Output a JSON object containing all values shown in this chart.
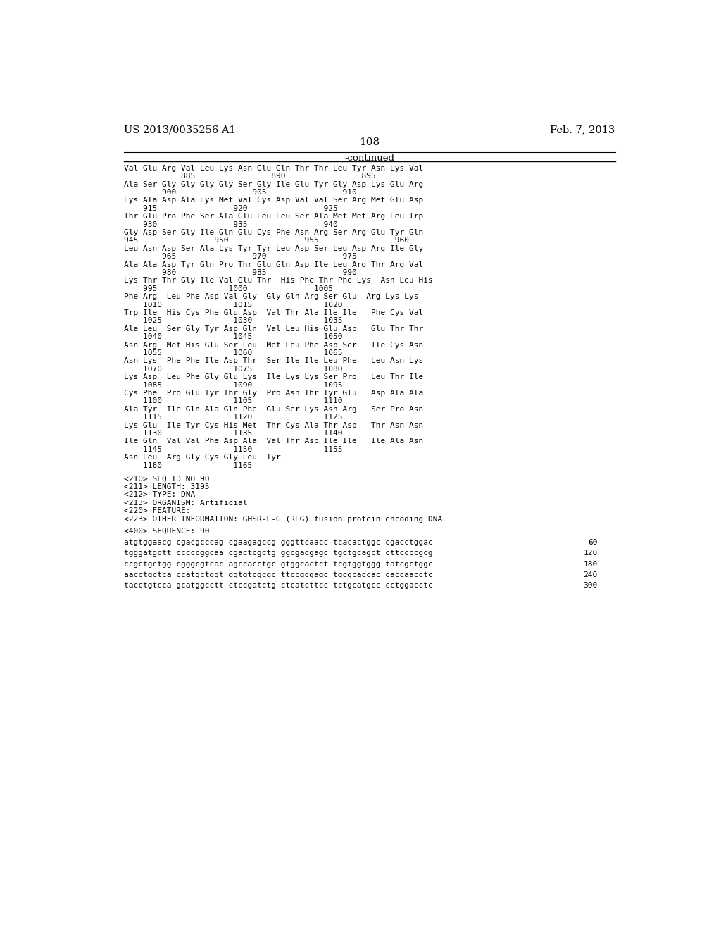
{
  "left_header": "US 2013/0035256 A1",
  "right_header": "Feb. 7, 2013",
  "page_number": "108",
  "continued_label": "-continued",
  "bg_color": "#ffffff",
  "text_color": "#000000",
  "seq_lines": [
    "Val Glu Arg Val Leu Lys Asn Glu Gln Thr Thr Leu Tyr Asn Lys Val",
    "            885                890                895",
    "Ala Ser Gly Gly Gly Gly Ser Gly Ile Glu Tyr Gly Asp Lys Glu Arg",
    "        900                905                910",
    "Lys Ala Asp Ala Lys Met Val Cys Asp Val Val Ser Arg Met Glu Asp",
    "    915                920                925",
    "Thr Glu Pro Phe Ser Ala Glu Leu Leu Ser Ala Met Met Arg Leu Trp",
    "    930                935                940",
    "Gly Asp Ser Gly Ile Gln Glu Cys Phe Asn Arg Ser Arg Glu Tyr Gln",
    "945                950                955                960",
    "Leu Asn Asp Ser Ala Lys Tyr Tyr Leu Asp Ser Leu Asp Arg Ile Gly",
    "        965                970                975",
    "Ala Ala Asp Tyr Gln Pro Thr Glu Gln Asp Ile Leu Arg Thr Arg Val",
    "        980                985                990",
    "Lys Thr Thr Gly Ile Val Glu Thr  His Phe Thr Phe Lys  Asn Leu His",
    "    995               1000              1005",
    "Phe Arg  Leu Phe Asp Val Gly  Gly Gln Arg Ser Glu  Arg Lys Lys",
    "    1010               1015               1020",
    "Trp Ile  His Cys Phe Glu Asp  Val Thr Ala Ile Ile   Phe Cys Val",
    "    1025               1030               1035",
    "Ala Leu  Ser Gly Tyr Asp Gln  Val Leu His Glu Asp   Glu Thr Thr",
    "    1040               1045               1050",
    "Asn Arg  Met His Glu Ser Leu  Met Leu Phe Asp Ser   Ile Cys Asn",
    "    1055               1060               1065",
    "Asn Lys  Phe Phe Ile Asp Thr  Ser Ile Ile Leu Phe   Leu Asn Lys",
    "    1070               1075               1080",
    "Lys Asp  Leu Phe Gly Glu Lys  Ile Lys Lys Ser Pro   Leu Thr Ile",
    "    1085               1090               1095",
    "Cys Phe  Pro Glu Tyr Thr Gly  Pro Asn Thr Tyr Glu   Asp Ala Ala",
    "    1100               1105               1110",
    "Ala Tyr  Ile Gln Ala Gln Phe  Glu Ser Lys Asn Arg   Ser Pro Asn",
    "    1115               1120               1125",
    "Lys Glu  Ile Tyr Cys His Met  Thr Cys Ala Thr Asp   Thr Asn Asn",
    "    1130               1135               1140",
    "Ile Gln  Val Val Phe Asp Ala  Val Thr Asp Ile Ile   Ile Ala Asn",
    "    1145               1150               1155",
    "Asn Leu  Arg Gly Cys Gly Leu  Tyr",
    "    1160               1165"
  ],
  "metadata_lines": [
    "<210> SEQ ID NO 90",
    "<211> LENGTH: 3195",
    "<212> TYPE: DNA",
    "<213> ORGANISM: Artificial",
    "<220> FEATURE:",
    "<223> OTHER INFORMATION: GHSR-L-G (RLG) fusion protein encoding DNA"
  ],
  "sequence_label": "<400> SEQUENCE: 90",
  "dna_lines": [
    [
      "atgtggaacg cgacgcccag cgaagagccg gggttcaacc tcacactggc cgacctggac",
      "60"
    ],
    [
      "tgggatgctt cccccggcaa cgactcgctg ggcgacgagc tgctgcagct cttccccgcg",
      "120"
    ],
    [
      "ccgctgctgg cgggcgtcac agccacctgc gtggcactct tcgtggtggg tatcgctggc",
      "180"
    ],
    [
      "aacctgctca ccatgctggt ggtgtcgcgc ttccgcgagc tgcgcaccac caccaacctc",
      "240"
    ],
    [
      "tacctgtcca gcatggcctt ctccgatctg ctcatcttcc tctgcatgcc cctggacctc",
      "300"
    ]
  ]
}
